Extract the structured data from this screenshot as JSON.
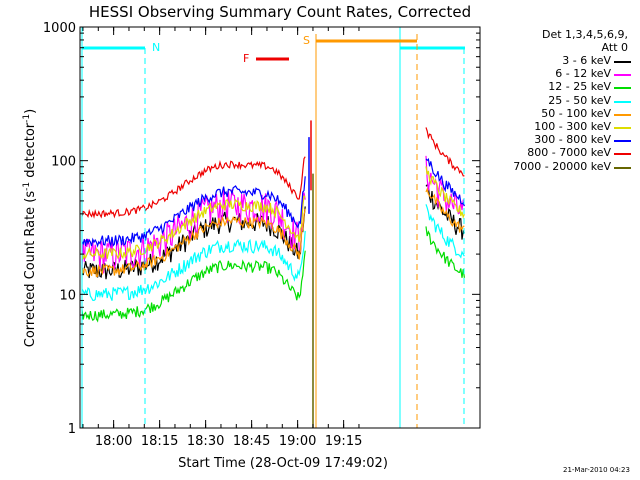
{
  "chart_data": {
    "type": "line",
    "title": "HESSI Observing Summary Count Rates, Corrected",
    "xlabel": "Start Time (28-Oct-09 17:49:02)",
    "ylabel_main": "Corrected Count Rate (s",
    "ylabel_sup1": "-1",
    "ylabel_mid": " detector",
    "ylabel_sup2": "-1",
    "ylabel_end": ")",
    "y_scale": "log",
    "ylim": [
      1,
      1000
    ],
    "y_ticks": [
      {
        "value": 1,
        "label": "1"
      },
      {
        "value": 10,
        "label": "10"
      },
      {
        "value": 100,
        "label": "100"
      },
      {
        "value": 1000,
        "label": "1000"
      }
    ],
    "x_ticks": [
      {
        "value": "18:00",
        "label": "18:00"
      },
      {
        "value": "18:15",
        "label": "18:15"
      },
      {
        "value": "18:30",
        "label": "18:30"
      },
      {
        "value": "18:45",
        "label": "18:45"
      },
      {
        "value": "19:00",
        "label": "19:00"
      },
      {
        "value": "19:15",
        "label": "19:15"
      }
    ],
    "legend_header": [
      "Det 1,3,4,5,6,9,",
      "Att 0"
    ],
    "series": [
      {
        "name": "3 - 6 keV",
        "color": "#000000"
      },
      {
        "name": "6 - 12 keV",
        "color": "#ff00ff"
      },
      {
        "name": "12 - 25 keV",
        "color": "#00dd00"
      },
      {
        "name": "25 - 50 keV",
        "color": "#00ffff"
      },
      {
        "name": "50 - 100 keV",
        "color": "#ff9900"
      },
      {
        "name": "100 - 300 keV",
        "color": "#dddd00"
      },
      {
        "name": "300 - 800 keV",
        "color": "#0000ff"
      },
      {
        "name": "800 - 7000 keV",
        "color": "#ee0000"
      },
      {
        "name": "7000 - 20000 keV",
        "color": "#666600"
      }
    ],
    "flags": [
      {
        "label": "N",
        "color": "#00ffff"
      },
      {
        "label": "S",
        "color": "#ff9900"
      },
      {
        "label": "F",
        "color": "#ee0000"
      }
    ],
    "timestamp": "21-Mar-2010 04:23"
  }
}
